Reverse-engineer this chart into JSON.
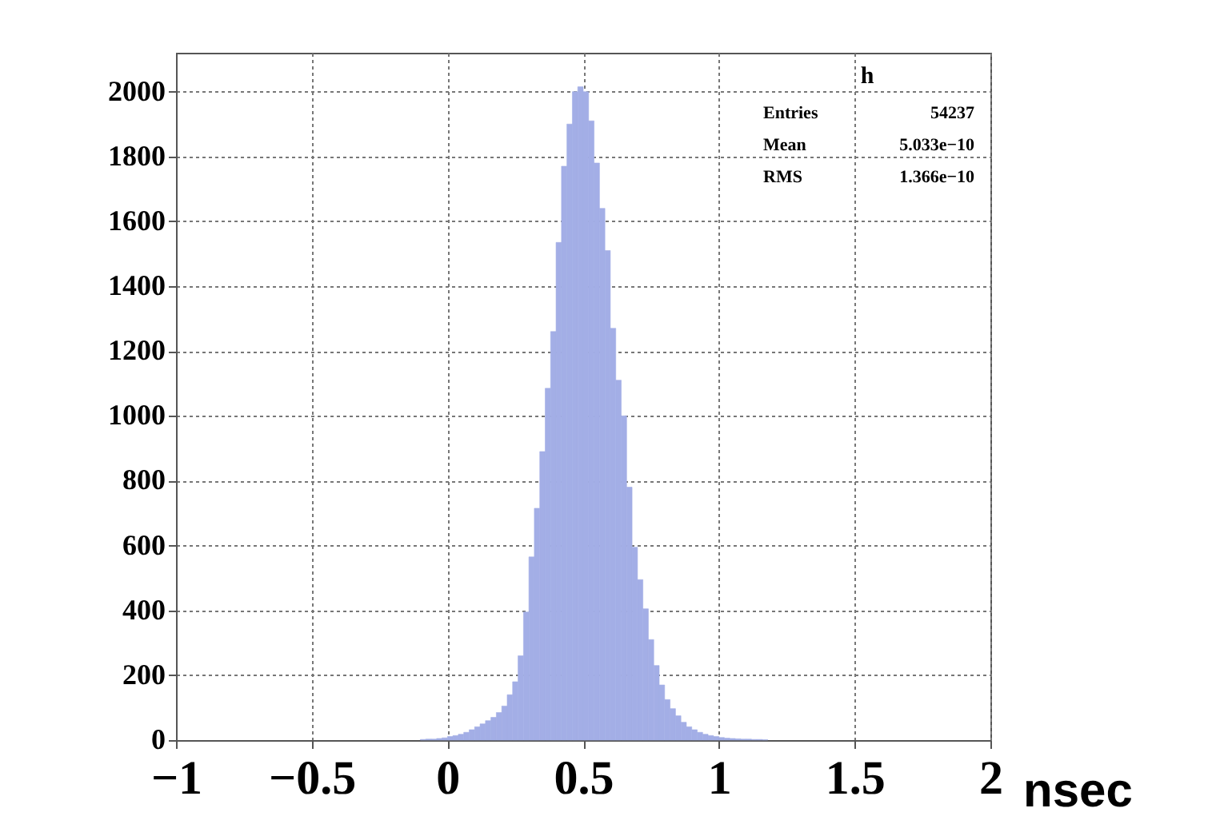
{
  "chart_data": {
    "type": "histogram",
    "xlabel": "nsec",
    "bins": [
      -0.1,
      -0.08,
      -0.06,
      -0.04,
      -0.02,
      0,
      0.02,
      0.04,
      0.06,
      0.08,
      0.1,
      0.12,
      0.14,
      0.16,
      0.18,
      0.2,
      0.22,
      0.24,
      0.26,
      0.28,
      0.3,
      0.32,
      0.34,
      0.36,
      0.38,
      0.4,
      0.42,
      0.44,
      0.46,
      0.48,
      0.5,
      0.52,
      0.54,
      0.56,
      0.58,
      0.6,
      0.62,
      0.64,
      0.66,
      0.68,
      0.7,
      0.72,
      0.74,
      0.76,
      0.78,
      0.8,
      0.82,
      0.84,
      0.86,
      0.88,
      0.9,
      0.92,
      0.94,
      0.96,
      0.98,
      1,
      1.02,
      1.04,
      1.06,
      1.08,
      1.1,
      1.12,
      1.14,
      1.16,
      1.18
    ],
    "values": [
      2,
      3,
      3,
      5,
      7,
      11,
      14,
      18,
      24,
      32,
      41,
      50,
      60,
      70,
      85,
      105,
      140,
      180,
      260,
      395,
      565,
      715,
      890,
      1085,
      1260,
      1535,
      1770,
      1900,
      2000,
      2015,
      2000,
      1910,
      1780,
      1640,
      1510,
      1270,
      1110,
      1000,
      780,
      595,
      495,
      405,
      310,
      230,
      170,
      125,
      97,
      75,
      55,
      41,
      32,
      24,
      18,
      14,
      11,
      8,
      6,
      5,
      4,
      3,
      3,
      2,
      2,
      1
    ],
    "color": "#a3aee6",
    "xlim": [
      -1,
      2
    ],
    "xticks": [
      {
        "value": -1,
        "label": "−1"
      },
      {
        "value": -0.5,
        "label": "−0.5"
      },
      0,
      0.5,
      1,
      1.5,
      2
    ],
    "ylim": [
      0,
      2120
    ],
    "yticks": [
      0,
      200,
      400,
      600,
      800,
      1000,
      1200,
      1400,
      1600,
      1800,
      2000
    ],
    "grid": true,
    "annotations": [
      "h",
      "Entries",
      "54237",
      "Mean",
      "5.033e−10",
      "RMS",
      "1.366e−10"
    ]
  }
}
